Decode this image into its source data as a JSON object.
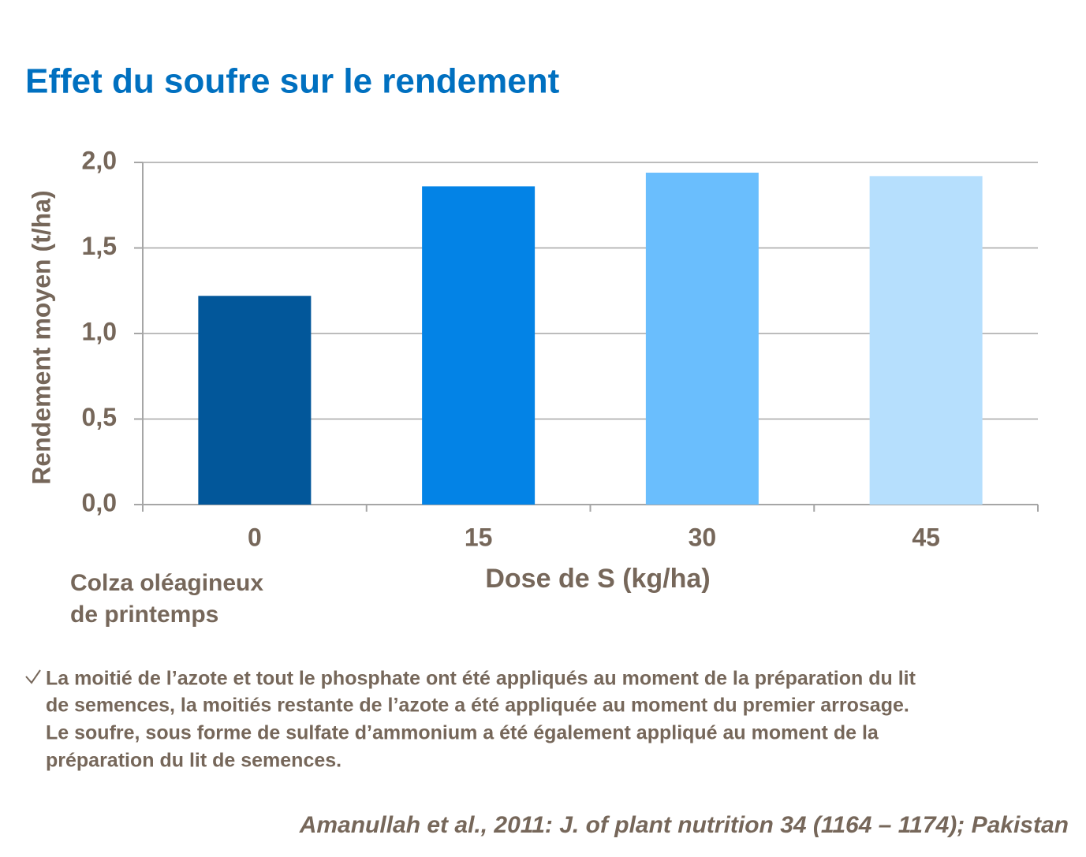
{
  "chart_data": {
    "type": "bar",
    "title": "Effet du soufre sur le rendement",
    "x_label": "Dose de S (kg/ha)",
    "y_label": "Rendement moyen (t/ha)",
    "categories": [
      "0",
      "15",
      "30",
      "45"
    ],
    "values": [
      1.22,
      1.86,
      1.94,
      1.92
    ],
    "colors": [
      "#02579a",
      "#0383e6",
      "#6abefd",
      "#b6dffd"
    ],
    "ylim": [
      0,
      2
    ],
    "yticks": [
      {
        "value": 0,
        "label": "0,0"
      },
      {
        "value": 0.5,
        "label": "0,5"
      },
      {
        "value": 1,
        "label": "1,0"
      },
      {
        "value": 1.5,
        "label": "1,5"
      },
      {
        "value": 2,
        "label": "2,0"
      }
    ],
    "grid": true,
    "annotation": [
      "Colza oléagineux",
      "de printemps"
    ]
  },
  "footnote": [
    "La moitié de l’azote et tout le phosphate ont été appliqués au moment de la préparation du lit",
    "de semences, la moitiés restante de l’azote a été appliquée au moment du premier arrosage.",
    "Le soufre, sous forme de sulfate d’ammonium a été également appliqué au moment de la",
    "préparation du lit de semences."
  ],
  "citation": "Amanullah et al., 2011: J. of plant nutrition 34 (1164 – 1174); Pakistan"
}
